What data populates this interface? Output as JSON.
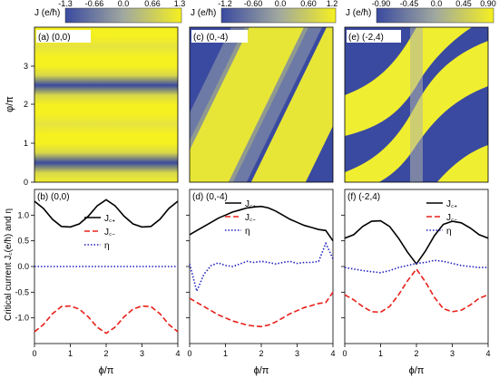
{
  "chart_data": [
    {
      "id": "a",
      "type": "heatmap",
      "panel_label": "(a) (0,0)",
      "colorbar": {
        "title": "J (e/ħ)",
        "ticks": [
          "-1.3",
          "-0.66",
          "0.0",
          "0.66",
          "1.3"
        ],
        "low_color": "#3a4aa0",
        "high_color": "#f5f020"
      },
      "xlim": [
        0,
        4
      ],
      "ylim": [
        0,
        4
      ],
      "ylabel": "φ/π",
      "yticks": [
        "0",
        "1",
        "2",
        "3"
      ],
      "pattern": "J varies only with φ; yellow bands near φ/π = 0, 1–2 and 3–4, blue near 0.5 and 2.5"
    },
    {
      "id": "c",
      "type": "heatmap",
      "panel_label": "(c) (0,-4)",
      "colorbar": {
        "title": "J (e/ħ)",
        "ticks": [
          "-1.2",
          "-0.60",
          "0.0",
          "0.60",
          "1.2"
        ],
        "low_color": "#3a4aa0",
        "high_color": "#f5f020"
      },
      "xlim": [
        0,
        4
      ],
      "ylim": [
        0,
        4
      ],
      "pattern": "diagonal stripes rising with ϕ"
    },
    {
      "id": "e",
      "type": "heatmap",
      "panel_label": "(e) (-2,4)",
      "colorbar": {
        "title": "J (e/ħ)",
        "ticks": [
          "-0.90",
          "-0.45",
          "0.0",
          "0.45",
          "0.90"
        ],
        "low_color": "#3a4aa0",
        "high_color": "#f5f020"
      },
      "xlim": [
        0,
        4
      ],
      "ylim": [
        0,
        4
      ],
      "pattern": "S-shaped stripes with a vertical dip at ϕ/π = 2"
    },
    {
      "id": "b",
      "type": "line",
      "panel_label": "(b) (0,0)",
      "xlabel": "ϕ/π",
      "ylabel": "Critical current J꜀(e/ħ) and η",
      "xlim": [
        0,
        4
      ],
      "ylim": [
        -1.5,
        1.5
      ],
      "xticks": [
        "0",
        "1",
        "2",
        "3",
        "4"
      ],
      "yticks": [
        "-1.0",
        "-0.5",
        "0.0",
        "0.5",
        "1.0"
      ],
      "x": [
        0,
        0.25,
        0.5,
        0.75,
        1,
        1.25,
        1.5,
        1.75,
        2,
        2.25,
        2.5,
        2.75,
        3,
        3.25,
        3.5,
        3.75,
        4
      ],
      "series": [
        {
          "name": "J꜀₊",
          "color": "#000000",
          "dash": "solid",
          "values": [
            1.27,
            1.13,
            0.92,
            0.78,
            0.77,
            0.83,
            0.98,
            1.18,
            1.3,
            1.18,
            0.98,
            0.83,
            0.77,
            0.78,
            0.92,
            1.13,
            1.27
          ]
        },
        {
          "name": "J꜀₋",
          "color": "#e8201a",
          "dash": "dashed",
          "values": [
            -1.27,
            -1.13,
            -0.92,
            -0.78,
            -0.77,
            -0.83,
            -0.98,
            -1.18,
            -1.3,
            -1.18,
            -0.98,
            -0.83,
            -0.77,
            -0.78,
            -0.92,
            -1.13,
            -1.27
          ]
        },
        {
          "name": "η",
          "color": "#2020c0",
          "dash": "dotted",
          "values": [
            0,
            0,
            0,
            0,
            0,
            0,
            0,
            0,
            0,
            0,
            0,
            0,
            0,
            0,
            0,
            0,
            0
          ]
        }
      ],
      "legend": {
        "position": "right"
      }
    },
    {
      "id": "d",
      "type": "line",
      "panel_label": "(d) (0,-4)",
      "xlabel": "ϕ/π",
      "xlim": [
        0,
        4
      ],
      "ylim": [
        -1.5,
        1.5
      ],
      "xticks": [
        "0",
        "1",
        "2",
        "3",
        "4"
      ],
      "x": [
        0,
        0.2,
        0.4,
        0.6,
        0.8,
        1,
        1.2,
        1.4,
        1.6,
        1.8,
        2,
        2.2,
        2.4,
        2.6,
        2.8,
        3,
        3.2,
        3.4,
        3.6,
        3.8,
        4
      ],
      "series": [
        {
          "name": "J꜀₊",
          "color": "#000000",
          "dash": "solid",
          "values": [
            0.62,
            0.7,
            0.78,
            0.86,
            0.94,
            1.0,
            1.06,
            1.1,
            1.14,
            1.16,
            1.17,
            1.14,
            1.08,
            1.0,
            0.92,
            0.86,
            0.8,
            0.76,
            0.72,
            0.7,
            0.5
          ]
        },
        {
          "name": "J꜀₋",
          "color": "#e8201a",
          "dash": "dashed",
          "values": [
            -0.62,
            -0.7,
            -0.78,
            -0.86,
            -0.94,
            -1.0,
            -1.06,
            -1.1,
            -1.14,
            -1.16,
            -1.17,
            -1.14,
            -1.08,
            -1.0,
            -0.92,
            -0.86,
            -0.8,
            -0.76,
            -0.72,
            -0.7,
            -0.5
          ]
        },
        {
          "name": "η",
          "color": "#2020c0",
          "dash": "dotted",
          "values": [
            0.05,
            -0.48,
            -0.15,
            0.02,
            0.07,
            0.02,
            0.0,
            0.05,
            0.1,
            0.08,
            0.1,
            0.08,
            0.05,
            0.08,
            0.1,
            0.06,
            0.08,
            0.08,
            0.1,
            0.45,
            0.15
          ]
        }
      ],
      "legend": {
        "position": "top-right"
      }
    },
    {
      "id": "f",
      "type": "line",
      "panel_label": "(f) (-2,4)",
      "xlabel": "ϕ/π",
      "xlim": [
        0,
        4
      ],
      "ylim": [
        -1.5,
        1.5
      ],
      "xticks": [
        "0",
        "1",
        "2",
        "3",
        "4"
      ],
      "x": [
        0,
        0.25,
        0.5,
        0.75,
        1,
        1.25,
        1.5,
        1.75,
        2,
        2.25,
        2.5,
        2.75,
        3,
        3.25,
        3.5,
        3.75,
        4
      ],
      "series": [
        {
          "name": "J꜀₊",
          "color": "#000000",
          "dash": "solid",
          "values": [
            0.55,
            0.62,
            0.78,
            0.88,
            0.89,
            0.78,
            0.55,
            0.28,
            0.05,
            0.3,
            0.6,
            0.82,
            0.88,
            0.85,
            0.75,
            0.62,
            0.55
          ]
        },
        {
          "name": "J꜀₋",
          "color": "#e8201a",
          "dash": "dashed",
          "values": [
            -0.55,
            -0.65,
            -0.78,
            -0.88,
            -0.89,
            -0.78,
            -0.55,
            -0.28,
            -0.05,
            -0.3,
            -0.6,
            -0.82,
            -0.88,
            -0.85,
            -0.75,
            -0.62,
            -0.55
          ]
        },
        {
          "name": "η",
          "color": "#2020c0",
          "dash": "dotted",
          "values": [
            -0.02,
            -0.05,
            -0.08,
            -0.1,
            -0.12,
            -0.08,
            -0.02,
            0.02,
            0.06,
            0.08,
            0.12,
            0.1,
            0.06,
            0.02,
            0.0,
            -0.02,
            -0.02
          ]
        }
      ],
      "legend": {
        "position": "right"
      }
    }
  ]
}
